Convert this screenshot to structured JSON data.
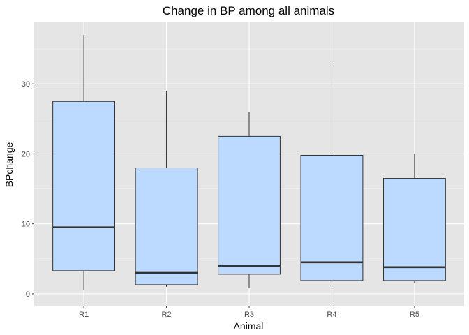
{
  "chart_data": {
    "type": "boxplot",
    "title": "Change in BP among all animals",
    "xlabel": "Animal",
    "ylabel": "BPchange",
    "categories": [
      "R1",
      "R2",
      "R3",
      "R4",
      "R5"
    ],
    "boxes": [
      {
        "category": "R1",
        "whisker_low": 0.5,
        "q1": 3.3,
        "median": 9.5,
        "q3": 27.5,
        "whisker_high": 37
      },
      {
        "category": "R2",
        "whisker_low": 1.0,
        "q1": 1.3,
        "median": 3.0,
        "q3": 18.0,
        "whisker_high": 29
      },
      {
        "category": "R3",
        "whisker_low": 0.8,
        "q1": 2.8,
        "median": 4.0,
        "q3": 22.5,
        "whisker_high": 26
      },
      {
        "category": "R4",
        "whisker_low": 1.2,
        "q1": 1.9,
        "median": 4.5,
        "q3": 19.8,
        "whisker_high": 33
      },
      {
        "category": "R5",
        "whisker_low": 1.5,
        "q1": 1.9,
        "median": 3.8,
        "q3": 16.5,
        "whisker_high": 20
      }
    ],
    "yticks": [
      0,
      10,
      20,
      30
    ],
    "ylim": [
      -1.8,
      38.8
    ],
    "grid": true,
    "colors": {
      "panel_background": "#e5e5e5",
      "grid_major": "#ffffff",
      "box_fill": "#bcdaff",
      "box_stroke": "#333333",
      "median": "#333333",
      "whisker": "#333333"
    }
  }
}
